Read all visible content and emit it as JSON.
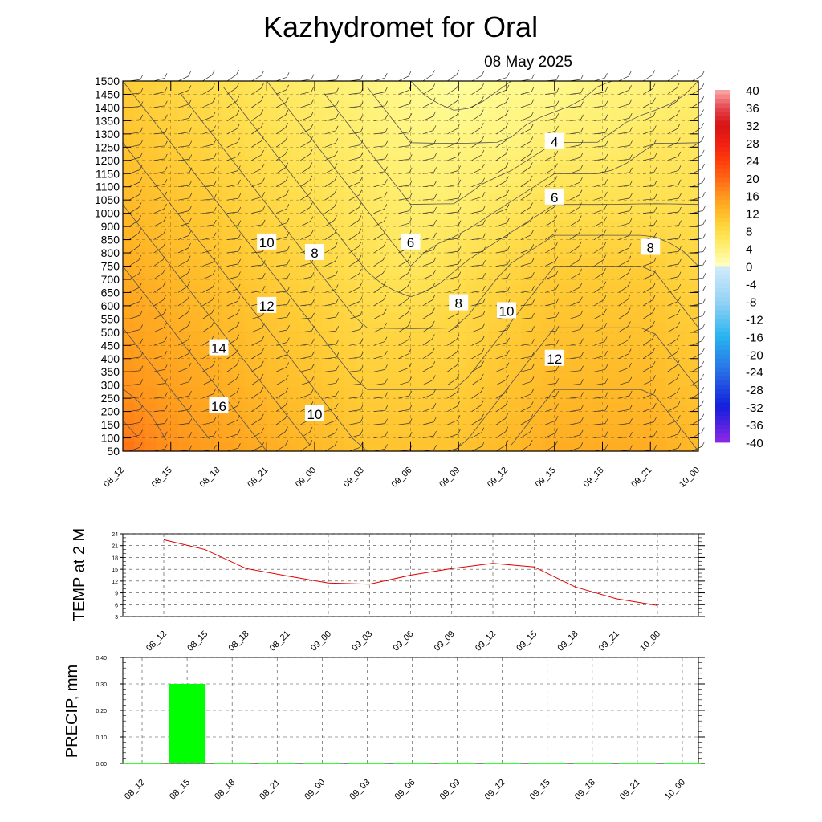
{
  "header": {
    "title": "Kazhydromet  for Oral",
    "date": "08 May 2025"
  },
  "chart_data": [
    {
      "type": "heatmap",
      "title": "",
      "x": [
        "08_12",
        "08_15",
        "08_18",
        "08_21",
        "09_00",
        "09_03",
        "09_06",
        "09_09",
        "09_12",
        "09_15",
        "09_18",
        "09_21",
        "10_00"
      ],
      "y_levels": [
        50,
        100,
        150,
        200,
        250,
        300,
        350,
        400,
        450,
        500,
        550,
        600,
        650,
        700,
        750,
        800,
        850,
        900,
        1000,
        1050,
        1100,
        1150,
        1200,
        1250,
        1300,
        1350,
        1400,
        1450,
        1500
      ],
      "y_tick_labels": [
        "50",
        "100",
        "150",
        "200",
        "250",
        "300",
        "350",
        "400",
        "450",
        "500",
        "550",
        "600",
        "650",
        "700",
        "750",
        "800",
        "850",
        "900",
        "1000",
        "1050",
        "1100",
        "1150",
        "1200",
        "1250",
        "1300",
        "1350",
        "1400",
        "1450",
        "1500"
      ],
      "colorbar": {
        "labels": [
          "40",
          "36",
          "32",
          "28",
          "24",
          "20",
          "16",
          "12",
          "8",
          "4",
          "0",
          "-4",
          "-8",
          "-12",
          "-16",
          "-20",
          "-24",
          "-28",
          "-32",
          "-36",
          "-40"
        ],
        "range": [
          -40,
          40
        ]
      },
      "temperature_approx": [
        [
          17,
          15,
          14,
          13,
          12,
          11,
          11,
          11,
          12,
          13,
          13,
          13,
          12
        ],
        [
          15,
          14,
          13,
          12,
          11,
          10,
          10,
          10,
          11,
          12,
          12,
          12,
          11
        ],
        [
          14,
          13,
          12,
          11,
          10,
          9,
          9,
          9,
          10,
          11,
          11,
          11,
          10
        ],
        [
          13,
          12,
          11,
          10,
          9,
          8,
          7,
          8,
          9,
          10,
          10,
          10,
          9
        ],
        [
          12,
          11,
          10,
          9,
          8,
          7,
          6,
          6,
          7,
          8,
          8,
          8,
          8
        ],
        [
          11,
          10,
          9,
          8,
          7,
          6,
          5,
          5,
          5,
          6,
          6,
          7,
          7
        ],
        [
          10,
          9,
          8,
          7,
          6,
          5,
          4,
          3,
          4,
          4,
          5,
          5,
          6
        ]
      ],
      "contour_labels": [
        {
          "label": "4",
          "x": "09_15",
          "y": 1270
        },
        {
          "label": "6",
          "x": "09_15",
          "y": 1060
        },
        {
          "label": "6",
          "x": "09_06",
          "y": 840
        },
        {
          "label": "8",
          "x": "09_21",
          "y": 820
        },
        {
          "label": "10",
          "x": "08_21",
          "y": 840
        },
        {
          "label": "8",
          "x": "09_00",
          "y": 800
        },
        {
          "label": "12",
          "x": "08_21",
          "y": 600
        },
        {
          "label": "8",
          "x": "09_09",
          "y": 610
        },
        {
          "label": "10",
          "x": "09_12",
          "y": 580
        },
        {
          "label": "14",
          "x": "08_18",
          "y": 440
        },
        {
          "label": "12",
          "x": "09_15",
          "y": 400
        },
        {
          "label": "16",
          "x": "08_18",
          "y": 220
        },
        {
          "label": "10",
          "x": "09_00",
          "y": 190
        }
      ]
    },
    {
      "type": "line",
      "ylabel": "TEMP at 2 M",
      "categories": [
        "08_12",
        "08_15",
        "08_18",
        "08_21",
        "09_00",
        "09_03",
        "09_06",
        "09_09",
        "09_12",
        "09_15",
        "09_18",
        "09_21",
        "10_00"
      ],
      "series": [
        {
          "values": [
            22.5,
            20,
            15.2,
            13.3,
            11.5,
            11.2,
            13.5,
            15.2,
            16.5,
            15.6,
            10.5,
            7.5,
            5.8
          ],
          "color": "#e00000"
        }
      ],
      "y_tick_labels": [
        "3",
        "6",
        "9",
        "12",
        "15",
        "18",
        "21",
        "24"
      ],
      "ylim": [
        3,
        24
      ]
    },
    {
      "type": "bar",
      "ylabel": "PRECIP, mm",
      "categories": [
        "08_12",
        "08_15",
        "08_18",
        "08_21",
        "09_00",
        "09_03",
        "09_06",
        "09_09",
        "09_12",
        "09_15",
        "09_18",
        "09_21",
        "10_00"
      ],
      "values": [
        0,
        0.3,
        0,
        0,
        0,
        0,
        0,
        0,
        0,
        0,
        0,
        0,
        0
      ],
      "y_tick_labels": [
        "0.00",
        "0.10",
        "0.20",
        "0.30",
        "0.40"
      ],
      "ylim": [
        0,
        0.4
      ],
      "color": "#00ff00"
    }
  ]
}
